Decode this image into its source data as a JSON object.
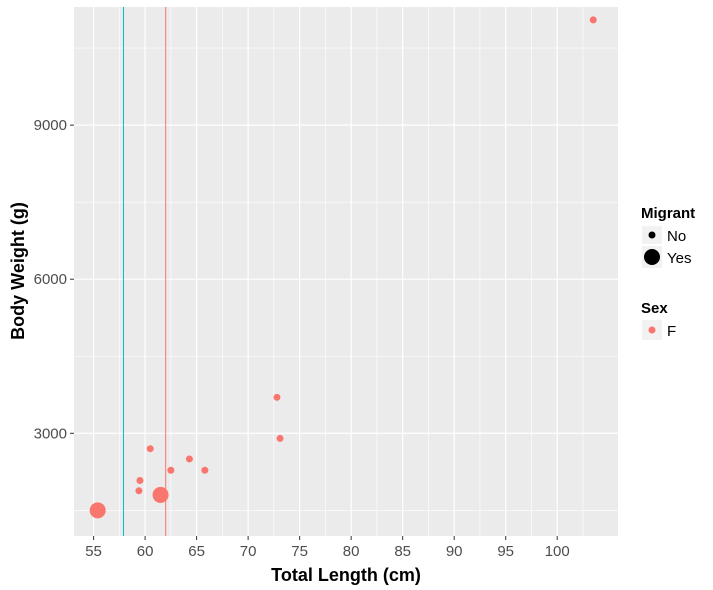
{
  "chart_data": {
    "type": "scatter",
    "xlabel": "Total Length (cm)",
    "ylabel": "Body Weight (g)",
    "xlim": [
      53.1,
      105.9
    ],
    "ylim": [
      1000,
      11300
    ],
    "x_ticks": [
      55,
      60,
      65,
      70,
      75,
      80,
      85,
      90,
      95,
      100
    ],
    "y_ticks": [
      3000,
      6000,
      9000
    ],
    "grid": true,
    "legend_placement": "right",
    "colors": {
      "F": "#f8766d",
      "reference_teal": "#00bfc4",
      "panel": "#ebebeb",
      "grid": "#ffffff"
    },
    "legend": {
      "migrant": {
        "title": "Migrant",
        "entries": [
          "No",
          "Yes"
        ]
      },
      "sex": {
        "title": "Sex",
        "entries": [
          "F"
        ]
      }
    },
    "vlines": [
      {
        "x": 57.9,
        "color": "#00bfc4"
      },
      {
        "x": 62.0,
        "color": "#f8766d"
      }
    ],
    "points": [
      {
        "x": 55.4,
        "y": 1500,
        "sex": "F",
        "migrant": "Yes"
      },
      {
        "x": 61.5,
        "y": 1800,
        "sex": "F",
        "migrant": "Yes"
      },
      {
        "x": 59.4,
        "y": 1880,
        "sex": "F",
        "migrant": "No"
      },
      {
        "x": 59.5,
        "y": 2080,
        "sex": "F",
        "migrant": "No"
      },
      {
        "x": 60.5,
        "y": 2700,
        "sex": "F",
        "migrant": "No"
      },
      {
        "x": 62.5,
        "y": 2280,
        "sex": "F",
        "migrant": "No"
      },
      {
        "x": 64.3,
        "y": 2500,
        "sex": "F",
        "migrant": "No"
      },
      {
        "x": 65.8,
        "y": 2280,
        "sex": "F",
        "migrant": "No"
      },
      {
        "x": 72.8,
        "y": 3700,
        "sex": "F",
        "migrant": "No"
      },
      {
        "x": 73.1,
        "y": 2900,
        "sex": "F",
        "migrant": "No"
      },
      {
        "x": 103.5,
        "y": 11050,
        "sex": "F",
        "migrant": "No"
      }
    ]
  }
}
